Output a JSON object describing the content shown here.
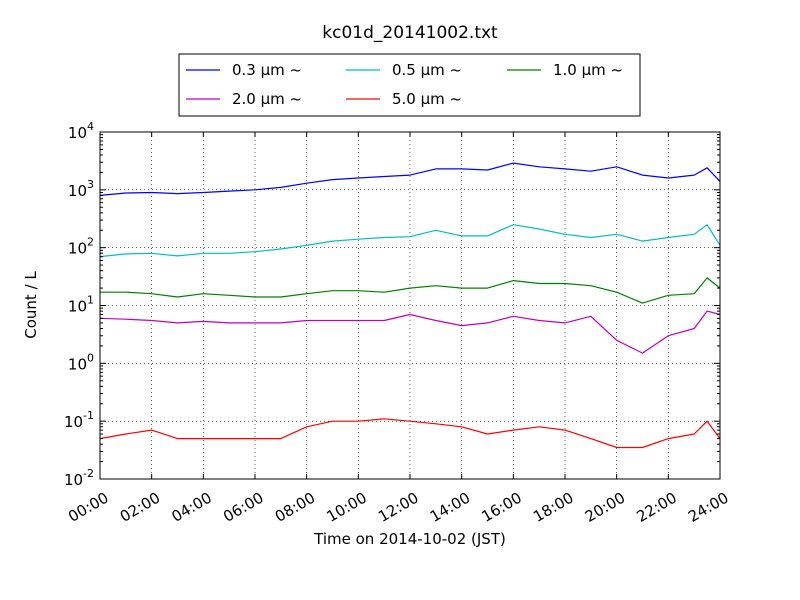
{
  "chart_data": {
    "type": "line",
    "title": "kc01d_20141002.txt",
    "xlabel": "Time on 2014-10-02 (JST)",
    "ylabel": "Count / L",
    "yscale": "log",
    "ylim": [
      0.01,
      10000
    ],
    "xlim": [
      "00:00",
      "24:00"
    ],
    "grid": true,
    "legend_position": "top-center",
    "x_ticks": [
      "00:00",
      "02:00",
      "04:00",
      "06:00",
      "08:00",
      "10:00",
      "12:00",
      "14:00",
      "16:00",
      "18:00",
      "20:00",
      "22:00",
      "24:00"
    ],
    "y_ticks": [
      {
        "base": "10",
        "exp": "-2",
        "value": 0.01
      },
      {
        "base": "10",
        "exp": "-1",
        "value": 0.1
      },
      {
        "base": "10",
        "exp": "0",
        "value": 1
      },
      {
        "base": "10",
        "exp": "1",
        "value": 10
      },
      {
        "base": "10",
        "exp": "2",
        "value": 100
      },
      {
        "base": "10",
        "exp": "3",
        "value": 1000
      },
      {
        "base": "10",
        "exp": "4",
        "value": 10000
      }
    ],
    "x": [
      "00:00",
      "01:00",
      "02:00",
      "03:00",
      "04:00",
      "05:00",
      "06:00",
      "07:00",
      "08:00",
      "09:00",
      "10:00",
      "11:00",
      "12:00",
      "13:00",
      "14:00",
      "15:00",
      "16:00",
      "17:00",
      "18:00",
      "19:00",
      "20:00",
      "21:00",
      "22:00",
      "23:00",
      "23:30",
      "24:00"
    ],
    "series": [
      {
        "name": "0.3 μm ~",
        "color": "#0000ff",
        "values": [
          800,
          880,
          900,
          860,
          900,
          950,
          1000,
          1100,
          1300,
          1500,
          1600,
          1700,
          1800,
          2300,
          2300,
          2200,
          2900,
          2500,
          2300,
          2100,
          2500,
          1800,
          1600,
          1800,
          2400,
          1400
        ]
      },
      {
        "name": "0.5 μm ~",
        "color": "#00bfbf",
        "values": [
          70,
          78,
          80,
          72,
          80,
          80,
          85,
          95,
          110,
          130,
          140,
          150,
          155,
          200,
          160,
          160,
          250,
          210,
          170,
          150,
          170,
          130,
          150,
          170,
          250,
          110
        ]
      },
      {
        "name": "1.0 μm ~",
        "color": "#008000",
        "values": [
          17,
          17,
          16,
          14,
          16,
          15,
          14,
          14,
          16,
          18,
          18,
          17,
          20,
          22,
          20,
          20,
          27,
          24,
          24,
          22,
          17,
          11,
          15,
          16,
          30,
          20
        ]
      },
      {
        "name": "2.0 μm ~",
        "color": "#bf00bf",
        "values": [
          6,
          5.8,
          5.5,
          5,
          5.3,
          5,
          5,
          5,
          5.5,
          5.5,
          5.5,
          5.5,
          7,
          5.5,
          4.5,
          5,
          6.5,
          5.5,
          5,
          6.5,
          2.5,
          1.5,
          3,
          4,
          8,
          7
        ]
      },
      {
        "name": "5.0 μm ~",
        "color": "#ff0000",
        "values": [
          0.05,
          0.06,
          0.07,
          0.05,
          0.05,
          0.05,
          0.05,
          0.05,
          0.08,
          0.1,
          0.1,
          0.11,
          0.1,
          0.09,
          0.08,
          0.06,
          0.07,
          0.08,
          0.07,
          0.05,
          0.035,
          0.035,
          0.05,
          0.06,
          0.1,
          0.05
        ]
      }
    ]
  }
}
